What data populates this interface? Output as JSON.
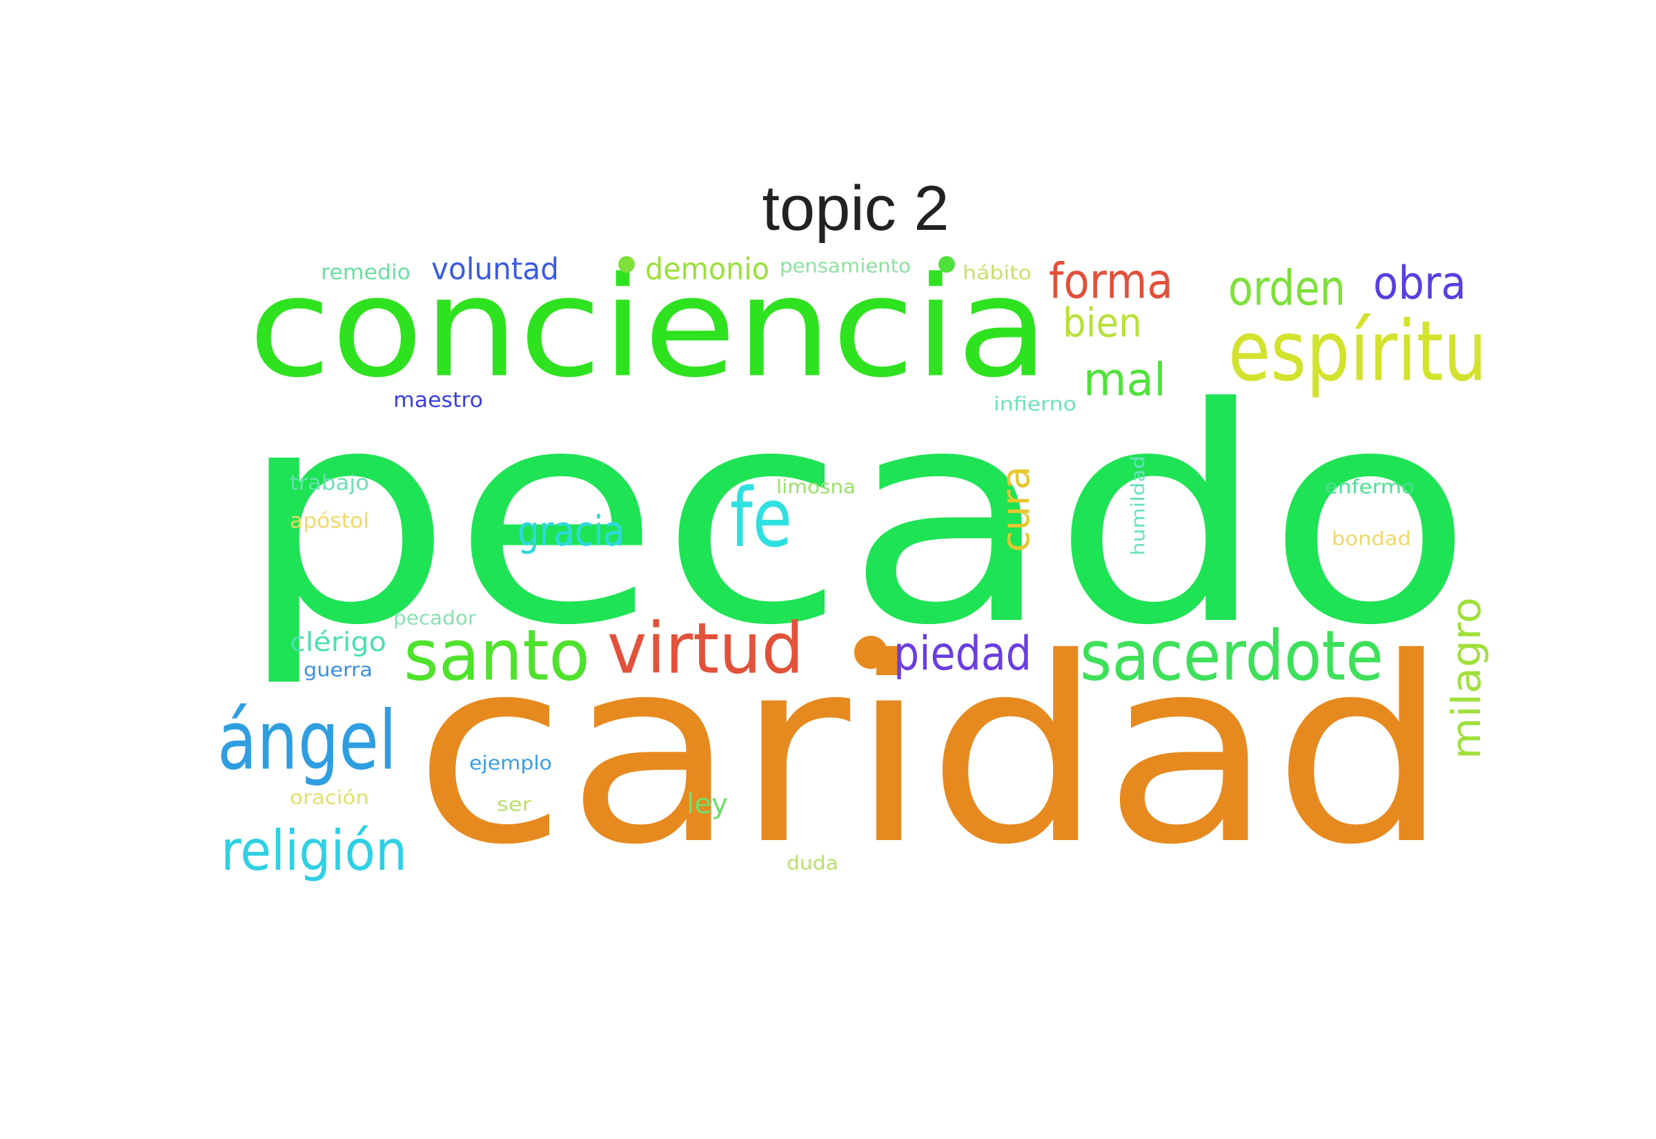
{
  "title": "topic 2",
  "words": [
    {
      "id": "pecado",
      "text": "pecado",
      "color": "#1ee355"
    },
    {
      "id": "caridad",
      "text": "caridad",
      "color": "#e68a1f"
    },
    {
      "id": "conciencia",
      "text": "conciencia",
      "color": "#2fe220"
    },
    {
      "id": "espiritu",
      "text": "espíritu",
      "color": "#d3e22c"
    },
    {
      "id": "santo",
      "text": "santo",
      "color": "#4fe22d"
    },
    {
      "id": "virtud",
      "text": "virtud",
      "color": "#e2523a"
    },
    {
      "id": "sacerdote",
      "text": "sacerdote",
      "color": "#3ee05a"
    },
    {
      "id": "angel",
      "text": "ángel",
      "color": "#2f9ee0"
    },
    {
      "id": "religion",
      "text": "religión",
      "color": "#2fd0e4"
    },
    {
      "id": "fe",
      "text": "fe",
      "color": "#2fe0e0"
    },
    {
      "id": "forma",
      "text": "forma",
      "color": "#e2503a"
    },
    {
      "id": "orden",
      "text": "orden",
      "color": "#7ee03a"
    },
    {
      "id": "obra",
      "text": "obra",
      "color": "#5a3ee0"
    },
    {
      "id": "milagro",
      "text": "milagro",
      "color": "#a0e03a"
    },
    {
      "id": "piedad",
      "text": "piedad",
      "color": "#6a3ee0"
    },
    {
      "id": "gracia",
      "text": "gracia",
      "color": "#2fd8e0"
    },
    {
      "id": "cura",
      "text": "cura",
      "color": "#e6c82f"
    },
    {
      "id": "mal",
      "text": "mal",
      "color": "#4fe23a"
    },
    {
      "id": "bien",
      "text": "bien",
      "color": "#b8e03a"
    },
    {
      "id": "voluntad",
      "text": "voluntad",
      "color": "#3a5ae0"
    },
    {
      "id": "demonio",
      "text": "demonio",
      "color": "#9ae03a"
    },
    {
      "id": "ley",
      "text": "ley",
      "color": "#6ee06a"
    },
    {
      "id": "remedio",
      "text": "remedio",
      "color": "#6ae0a0"
    },
    {
      "id": "pensamiento",
      "text": "pensamiento",
      "color": "#8ee0a0"
    },
    {
      "id": "habito",
      "text": "hábito",
      "color": "#c8e06a"
    },
    {
      "id": "maestro",
      "text": "maestro",
      "color": "#3a3ee0"
    },
    {
      "id": "infierno",
      "text": "infierno",
      "color": "#6ee0b8"
    },
    {
      "id": "trabajo",
      "text": "trabajo",
      "color": "#6ae0b0"
    },
    {
      "id": "apostol",
      "text": "apóstol",
      "color": "#f0d86a"
    },
    {
      "id": "limosna",
      "text": "limosna",
      "color": "#9ae06a"
    },
    {
      "id": "humildad",
      "text": "humildad",
      "color": "#6ae0c0"
    },
    {
      "id": "enfermo",
      "text": "enfermo",
      "color": "#4ae090"
    },
    {
      "id": "bondad",
      "text": "bondad",
      "color": "#f0d86a"
    },
    {
      "id": "pecador",
      "text": "pecador",
      "color": "#8ae0b0"
    },
    {
      "id": "clerigo",
      "text": "clérigo",
      "color": "#4ae0b0"
    },
    {
      "id": "guerra",
      "text": "guerra",
      "color": "#3a8ee0"
    },
    {
      "id": "ejemplo",
      "text": "ejemplo",
      "color": "#3a9ee0"
    },
    {
      "id": "oracion",
      "text": "oración",
      "color": "#e0e06a"
    },
    {
      "id": "ser",
      "text": "ser",
      "color": "#b8e06a"
    },
    {
      "id": "duda",
      "text": "duda",
      "color": "#b8e06a"
    }
  ],
  "dots": [
    {
      "id": "dot-1",
      "color": "#7ee03a"
    },
    {
      "id": "dot-2",
      "color": "#4ee03a"
    },
    {
      "id": "dot-3",
      "color": "#e68a1f"
    }
  ]
}
